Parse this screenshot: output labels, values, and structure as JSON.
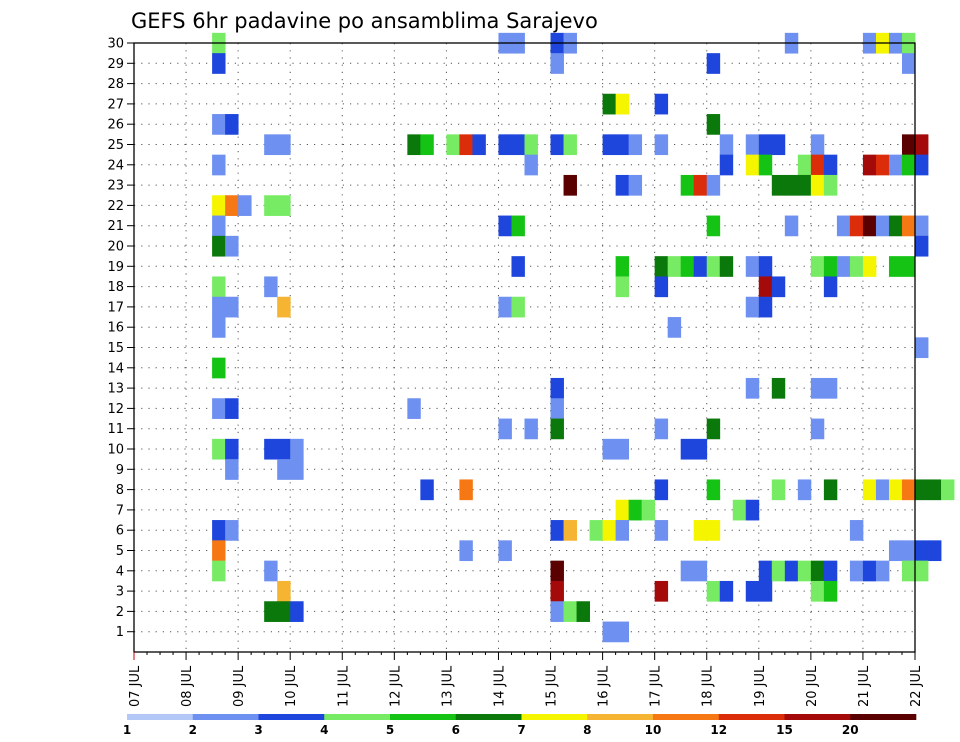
{
  "chart_data": {
    "type": "heatmap",
    "title": "GEFS 6hr padavine po ansamblima Sarajevo",
    "xlabel": "",
    "ylabel": "",
    "x_ticks": [
      "07 JUL",
      "08 JUL",
      "09 JUL",
      "10 JUL",
      "11 JUL",
      "12 JUL",
      "13 JUL",
      "14 JUL",
      "15 JUL",
      "16 JUL",
      "17 JUL",
      "18 JUL",
      "19 JUL",
      "20 JUL",
      "21 JUL",
      "22 JUL"
    ],
    "xlim": [
      "07 JUL",
      "22 JUL"
    ],
    "time_step_hours": 6,
    "ylim": [
      0,
      30
    ],
    "y_ticks": [
      1,
      2,
      3,
      4,
      5,
      6,
      7,
      8,
      9,
      10,
      11,
      12,
      13,
      14,
      15,
      16,
      17,
      18,
      19,
      20,
      21,
      22,
      23,
      24,
      25,
      26,
      27,
      28,
      29,
      30
    ],
    "grid": "dotted",
    "colorbar": {
      "position": "bottom",
      "levels": [
        1,
        2,
        3,
        4,
        5,
        6,
        7,
        8,
        10,
        12,
        15,
        20
      ],
      "level_labels": [
        "1",
        "2",
        "3",
        "4",
        "5",
        "6",
        "7",
        "8",
        "10",
        "12",
        "15",
        "20"
      ],
      "colors": [
        "#b4c8f8",
        "#6e90f0",
        "#1e46dc",
        "#78eb64",
        "#14c314",
        "#0a780a",
        "#f5f500",
        "#f5b432",
        "#f57814",
        "#dc2d0a",
        "#a50a0a",
        "#5a0000"
      ]
    },
    "value_encoding": "cells list [member, day_of_july, hour_utc, color_class]; color_class indexes colorbar.colors",
    "cells": [
      [
        30,
        9,
        0,
        3
      ],
      [
        30,
        14,
        12,
        1
      ],
      [
        30,
        14,
        18,
        1
      ],
      [
        30,
        15,
        12,
        2
      ],
      [
        30,
        15,
        18,
        1
      ],
      [
        30,
        20,
        0,
        1
      ],
      [
        30,
        21,
        12,
        1
      ],
      [
        30,
        21,
        18,
        6
      ],
      [
        30,
        22,
        0,
        1
      ],
      [
        30,
        22,
        6,
        3
      ],
      [
        29,
        9,
        0,
        2
      ],
      [
        29,
        15,
        12,
        1
      ],
      [
        29,
        18,
        12,
        2
      ],
      [
        29,
        22,
        6,
        1
      ],
      [
        27,
        16,
        12,
        5
      ],
      [
        27,
        16,
        18,
        6
      ],
      [
        27,
        17,
        12,
        2
      ],
      [
        26,
        9,
        0,
        1
      ],
      [
        26,
        9,
        6,
        2
      ],
      [
        26,
        18,
        12,
        5
      ],
      [
        25,
        10,
        0,
        1
      ],
      [
        25,
        10,
        6,
        1
      ],
      [
        25,
        12,
        18,
        5
      ],
      [
        25,
        13,
        0,
        4
      ],
      [
        25,
        13,
        12,
        3
      ],
      [
        25,
        13,
        18,
        9
      ],
      [
        25,
        14,
        0,
        2
      ],
      [
        25,
        14,
        12,
        2
      ],
      [
        25,
        14,
        18,
        2
      ],
      [
        25,
        15,
        0,
        3
      ],
      [
        25,
        15,
        12,
        2
      ],
      [
        25,
        15,
        18,
        3
      ],
      [
        25,
        16,
        12,
        2
      ],
      [
        25,
        16,
        18,
        2
      ],
      [
        25,
        17,
        0,
        1
      ],
      [
        25,
        17,
        12,
        1
      ],
      [
        25,
        18,
        18,
        1
      ],
      [
        25,
        19,
        6,
        1
      ],
      [
        25,
        19,
        12,
        2
      ],
      [
        25,
        19,
        18,
        2
      ],
      [
        25,
        20,
        12,
        1
      ],
      [
        25,
        22,
        6,
        11
      ],
      [
        25,
        22,
        12,
        10
      ],
      [
        24,
        9,
        0,
        1
      ],
      [
        24,
        15,
        0,
        1
      ],
      [
        24,
        18,
        18,
        2
      ],
      [
        24,
        19,
        6,
        6
      ],
      [
        24,
        19,
        12,
        4
      ],
      [
        24,
        20,
        6,
        3
      ],
      [
        24,
        20,
        12,
        9
      ],
      [
        24,
        20,
        18,
        2
      ],
      [
        24,
        21,
        12,
        10
      ],
      [
        24,
        21,
        18,
        9
      ],
      [
        24,
        22,
        0,
        1
      ],
      [
        24,
        22,
        6,
        4
      ],
      [
        24,
        22,
        12,
        2
      ],
      [
        23,
        15,
        18,
        11
      ],
      [
        23,
        16,
        18,
        2
      ],
      [
        23,
        17,
        0,
        1
      ],
      [
        23,
        18,
        0,
        4
      ],
      [
        23,
        18,
        6,
        9
      ],
      [
        23,
        18,
        12,
        1
      ],
      [
        23,
        19,
        18,
        5
      ],
      [
        23,
        20,
        0,
        5
      ],
      [
        23,
        20,
        6,
        5
      ],
      [
        23,
        20,
        12,
        6
      ],
      [
        23,
        20,
        18,
        3
      ],
      [
        22,
        9,
        0,
        6
      ],
      [
        22,
        9,
        6,
        8
      ],
      [
        22,
        9,
        12,
        1
      ],
      [
        22,
        10,
        0,
        3
      ],
      [
        22,
        10,
        6,
        3
      ],
      [
        21,
        9,
        0,
        1
      ],
      [
        21,
        14,
        12,
        2
      ],
      [
        21,
        14,
        18,
        4
      ],
      [
        21,
        18,
        12,
        4
      ],
      [
        21,
        20,
        0,
        1
      ],
      [
        21,
        21,
        0,
        1
      ],
      [
        21,
        21,
        6,
        9
      ],
      [
        21,
        21,
        12,
        11
      ],
      [
        21,
        21,
        18,
        1
      ],
      [
        21,
        22,
        0,
        5
      ],
      [
        21,
        22,
        6,
        8
      ],
      [
        21,
        22,
        12,
        1
      ],
      [
        20,
        9,
        0,
        5
      ],
      [
        20,
        9,
        6,
        1
      ],
      [
        20,
        22,
        12,
        2
      ],
      [
        19,
        14,
        18,
        2
      ],
      [
        19,
        16,
        18,
        4
      ],
      [
        19,
        17,
        12,
        5
      ],
      [
        19,
        17,
        18,
        3
      ],
      [
        19,
        18,
        0,
        4
      ],
      [
        19,
        18,
        6,
        2
      ],
      [
        19,
        18,
        12,
        3
      ],
      [
        19,
        18,
        18,
        5
      ],
      [
        19,
        19,
        6,
        1
      ],
      [
        19,
        19,
        12,
        2
      ],
      [
        19,
        20,
        12,
        3
      ],
      [
        19,
        20,
        18,
        4
      ],
      [
        19,
        21,
        0,
        1
      ],
      [
        19,
        21,
        6,
        3
      ],
      [
        19,
        21,
        12,
        6
      ],
      [
        19,
        22,
        0,
        4
      ],
      [
        19,
        22,
        6,
        4
      ],
      [
        18,
        9,
        0,
        3
      ],
      [
        18,
        10,
        0,
        1
      ],
      [
        18,
        16,
        18,
        3
      ],
      [
        18,
        17,
        12,
        2
      ],
      [
        18,
        19,
        12,
        10
      ],
      [
        18,
        19,
        18,
        2
      ],
      [
        18,
        20,
        18,
        2
      ],
      [
        17,
        9,
        0,
        1
      ],
      [
        17,
        9,
        6,
        1
      ],
      [
        17,
        10,
        6,
        7
      ],
      [
        17,
        14,
        12,
        1
      ],
      [
        17,
        14,
        18,
        3
      ],
      [
        17,
        19,
        6,
        1
      ],
      [
        17,
        19,
        12,
        2
      ],
      [
        16,
        9,
        0,
        1
      ],
      [
        16,
        17,
        18,
        1
      ],
      [
        15,
        22,
        12,
        1
      ],
      [
        14,
        9,
        0,
        4
      ],
      [
        13,
        15,
        12,
        2
      ],
      [
        13,
        19,
        6,
        1
      ],
      [
        13,
        19,
        18,
        5
      ],
      [
        13,
        20,
        12,
        1
      ],
      [
        13,
        20,
        18,
        1
      ],
      [
        12,
        9,
        0,
        1
      ],
      [
        12,
        9,
        6,
        2
      ],
      [
        12,
        12,
        18,
        1
      ],
      [
        12,
        15,
        12,
        1
      ],
      [
        11,
        14,
        12,
        1
      ],
      [
        11,
        15,
        0,
        1
      ],
      [
        11,
        15,
        12,
        5
      ],
      [
        11,
        17,
        12,
        1
      ],
      [
        11,
        18,
        12,
        5
      ],
      [
        11,
        20,
        12,
        1
      ],
      [
        10,
        9,
        0,
        3
      ],
      [
        10,
        9,
        6,
        2
      ],
      [
        10,
        10,
        0,
        2
      ],
      [
        10,
        10,
        6,
        2
      ],
      [
        10,
        10,
        12,
        1
      ],
      [
        10,
        16,
        12,
        1
      ],
      [
        10,
        16,
        18,
        1
      ],
      [
        10,
        18,
        0,
        2
      ],
      [
        10,
        18,
        6,
        2
      ],
      [
        9,
        9,
        6,
        1
      ],
      [
        9,
        10,
        6,
        1
      ],
      [
        9,
        10,
        12,
        1
      ],
      [
        8,
        13,
        0,
        2
      ],
      [
        8,
        13,
        18,
        8
      ],
      [
        8,
        17,
        12,
        2
      ],
      [
        8,
        18,
        12,
        4
      ],
      [
        8,
        19,
        18,
        3
      ],
      [
        8,
        20,
        6,
        1
      ],
      [
        8,
        20,
        18,
        5
      ],
      [
        8,
        21,
        12,
        6
      ],
      [
        8,
        21,
        18,
        1
      ],
      [
        8,
        22,
        0,
        6
      ],
      [
        8,
        22,
        6,
        8
      ],
      [
        8,
        22,
        12,
        5
      ],
      [
        8,
        22,
        18,
        5
      ],
      [
        8,
        23,
        0,
        3
      ],
      [
        7,
        16,
        18,
        6
      ],
      [
        7,
        17,
        0,
        4
      ],
      [
        7,
        17,
        6,
        3
      ],
      [
        7,
        19,
        0,
        3
      ],
      [
        7,
        19,
        6,
        2
      ],
      [
        6,
        9,
        0,
        2
      ],
      [
        6,
        9,
        6,
        1
      ],
      [
        6,
        15,
        12,
        2
      ],
      [
        6,
        15,
        18,
        7
      ],
      [
        6,
        16,
        6,
        3
      ],
      [
        6,
        16,
        12,
        6
      ],
      [
        6,
        16,
        18,
        1
      ],
      [
        6,
        17,
        12,
        1
      ],
      [
        6,
        18,
        6,
        6
      ],
      [
        6,
        18,
        12,
        6
      ],
      [
        6,
        21,
        6,
        1
      ],
      [
        5,
        9,
        0,
        8
      ],
      [
        5,
        13,
        18,
        1
      ],
      [
        5,
        14,
        12,
        1
      ],
      [
        5,
        22,
        0,
        1
      ],
      [
        5,
        22,
        6,
        1
      ],
      [
        5,
        22,
        12,
        2
      ],
      [
        5,
        22,
        18,
        2
      ],
      [
        4,
        9,
        0,
        3
      ],
      [
        4,
        10,
        0,
        1
      ],
      [
        4,
        15,
        12,
        11
      ],
      [
        4,
        18,
        0,
        1
      ],
      [
        4,
        18,
        6,
        1
      ],
      [
        4,
        19,
        12,
        2
      ],
      [
        4,
        19,
        18,
        3
      ],
      [
        4,
        20,
        0,
        2
      ],
      [
        4,
        20,
        6,
        3
      ],
      [
        4,
        20,
        12,
        5
      ],
      [
        4,
        20,
        18,
        2
      ],
      [
        4,
        21,
        6,
        1
      ],
      [
        4,
        21,
        12,
        2
      ],
      [
        4,
        21,
        18,
        1
      ],
      [
        4,
        22,
        6,
        3
      ],
      [
        4,
        22,
        12,
        3
      ],
      [
        3,
        10,
        6,
        7
      ],
      [
        3,
        15,
        12,
        10
      ],
      [
        3,
        17,
        12,
        10
      ],
      [
        3,
        18,
        12,
        3
      ],
      [
        3,
        18,
        18,
        2
      ],
      [
        3,
        19,
        6,
        2
      ],
      [
        3,
        19,
        12,
        2
      ],
      [
        3,
        20,
        12,
        3
      ],
      [
        3,
        20,
        18,
        4
      ],
      [
        2,
        10,
        0,
        5
      ],
      [
        2,
        10,
        6,
        5
      ],
      [
        2,
        10,
        12,
        2
      ],
      [
        2,
        15,
        12,
        1
      ],
      [
        2,
        15,
        18,
        3
      ],
      [
        2,
        16,
        0,
        5
      ],
      [
        1,
        16,
        12,
        1
      ],
      [
        1,
        16,
        18,
        1
      ]
    ]
  }
}
